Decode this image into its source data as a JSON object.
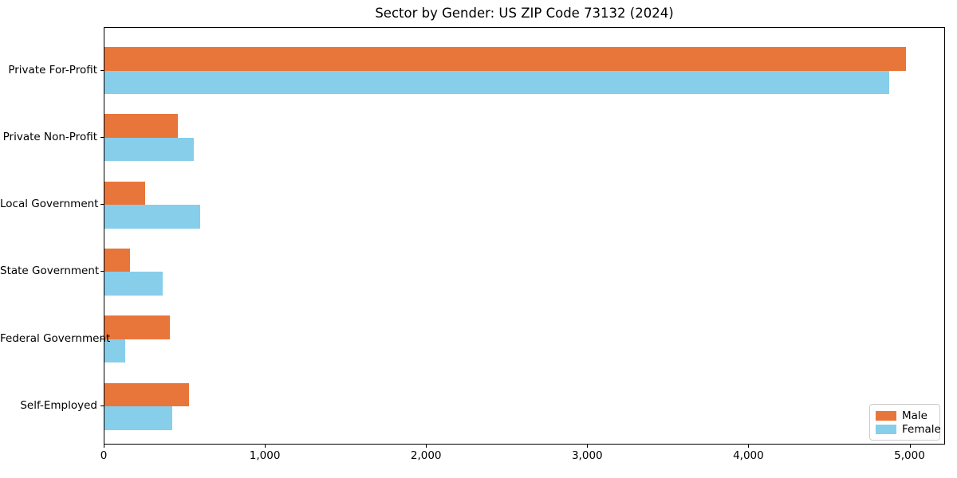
{
  "title": "Sector by Gender: US ZIP Code 73132 (2024)",
  "chart_data": {
    "type": "bar",
    "orientation": "horizontal",
    "title": "Sector by Gender: US ZIP Code 73132 (2024)",
    "categories": [
      "Private For-Profit",
      "Private Non-Profit",
      "Local Government",
      "State Government",
      "Federal Government",
      "Self-Employed"
    ],
    "series": [
      {
        "name": "Male",
        "color": "#E8763B",
        "values": [
          4970,
          455,
          250,
          160,
          405,
          525
        ]
      },
      {
        "name": "Female",
        "color": "#87CEEB",
        "values": [
          4870,
          555,
          595,
          360,
          130,
          420
        ]
      }
    ],
    "xlabel": "",
    "ylabel": "",
    "xlim": [
      0,
      5220
    ],
    "xticks": [
      0,
      1000,
      2000,
      3000,
      4000,
      5000
    ],
    "xtick_labels": [
      "0",
      "1,000",
      "2,000",
      "3,000",
      "4,000",
      "5,000"
    ],
    "grid": false,
    "legend": {
      "position": "lower right"
    }
  }
}
